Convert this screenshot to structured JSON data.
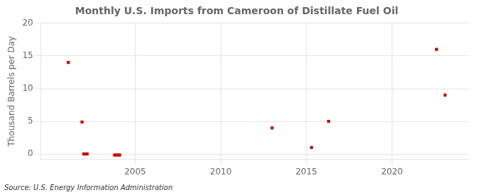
{
  "chart_data": {
    "type": "scatter",
    "title": "Monthly U.S. Imports from Cameroon of Distillate Fuel Oil",
    "ylabel": "Thousand Barrels per Day",
    "annotations": [
      "Source: U.S. Energy Information Administration"
    ],
    "x": [
      2001.1,
      2001.9,
      2002.0,
      2002.1,
      2002.2,
      2003.8,
      2003.9,
      2004.0,
      2004.1,
      2013.0,
      2015.3,
      2016.3,
      2022.6,
      2023.1
    ],
    "values": [
      14.0,
      4.9,
      0.0,
      0.0,
      0.0,
      -0.15,
      -0.15,
      -0.15,
      -0.15,
      4.0,
      1.0,
      5.0,
      16.0,
      9.0
    ],
    "color": "#cc0000",
    "marker": "square",
    "xlim": [
      1999.5,
      2024.5
    ],
    "xticks": [
      2005,
      2010,
      2015,
      2020
    ],
    "ylim": [
      -0.8,
      20
    ],
    "yticks": [
      0,
      5,
      10,
      15,
      20
    ],
    "grid": true
  }
}
